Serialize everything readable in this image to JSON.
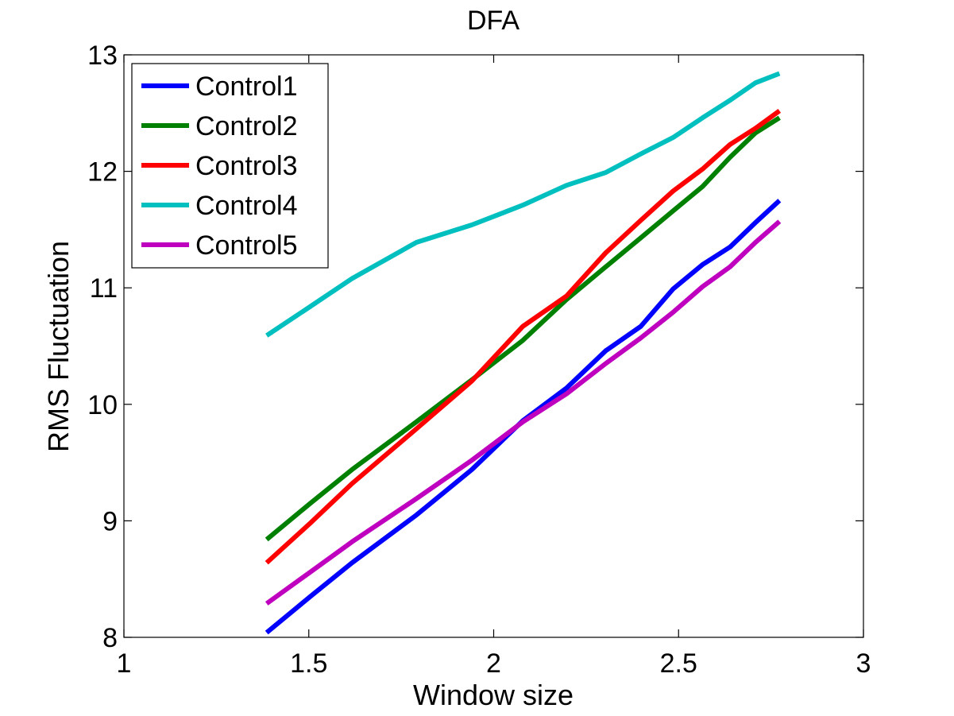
{
  "chart_data": {
    "type": "line",
    "title": "DFA",
    "xlabel": "Window size",
    "ylabel": "RMS Fluctuation",
    "xlim": [
      1,
      3
    ],
    "ylim": [
      8,
      13
    ],
    "xticks": [
      1,
      1.5,
      2,
      2.5,
      3
    ],
    "xtick_labels": [
      "1",
      "1.5",
      "2",
      "2.5",
      "3"
    ],
    "yticks": [
      8,
      9,
      10,
      11,
      12,
      13
    ],
    "ytick_labels": [
      "8",
      "9",
      "10",
      "11",
      "12",
      "13"
    ],
    "grid": false,
    "legend_position": "top-left",
    "series": [
      {
        "name": "Control1",
        "color": "#0000ff",
        "x": [
          1.386,
          1.504,
          1.617,
          1.791,
          1.941,
          2.079,
          2.197,
          2.303,
          2.398,
          2.485,
          2.565,
          2.639,
          2.708,
          2.773
        ],
        "y": [
          8.04,
          8.35,
          8.64,
          9.05,
          9.44,
          9.86,
          10.14,
          10.46,
          10.67,
          10.99,
          11.2,
          11.35,
          11.56,
          11.75
        ]
      },
      {
        "name": "Control2",
        "color": "#008000",
        "x": [
          1.386,
          1.504,
          1.617,
          1.791,
          1.941,
          2.079,
          2.197,
          2.303,
          2.398,
          2.485,
          2.565,
          2.639,
          2.708,
          2.773
        ],
        "y": [
          8.84,
          9.15,
          9.44,
          9.85,
          10.21,
          10.55,
          10.9,
          11.18,
          11.43,
          11.66,
          11.87,
          12.12,
          12.33,
          12.46
        ]
      },
      {
        "name": "Control3",
        "color": "#ff0000",
        "x": [
          1.386,
          1.504,
          1.617,
          1.791,
          1.941,
          2.079,
          2.197,
          2.303,
          2.398,
          2.485,
          2.565,
          2.639,
          2.708,
          2.773
        ],
        "y": [
          8.64,
          8.98,
          9.32,
          9.79,
          10.2,
          10.67,
          10.93,
          11.3,
          11.58,
          11.83,
          12.02,
          12.23,
          12.37,
          12.52
        ]
      },
      {
        "name": "Control4",
        "color": "#00bfbf",
        "x": [
          1.386,
          1.504,
          1.617,
          1.791,
          1.941,
          2.079,
          2.197,
          2.303,
          2.398,
          2.485,
          2.565,
          2.639,
          2.708,
          2.773
        ],
        "y": [
          10.59,
          10.84,
          11.08,
          11.39,
          11.54,
          11.71,
          11.88,
          11.99,
          12.15,
          12.29,
          12.46,
          12.61,
          12.76,
          12.84
        ]
      },
      {
        "name": "Control5",
        "color": "#bf00bf",
        "x": [
          1.386,
          1.504,
          1.617,
          1.791,
          1.941,
          2.079,
          2.197,
          2.303,
          2.398,
          2.485,
          2.565,
          2.639,
          2.708,
          2.773
        ],
        "y": [
          8.29,
          8.56,
          8.82,
          9.19,
          9.52,
          9.85,
          10.09,
          10.35,
          10.57,
          10.79,
          11.01,
          11.18,
          11.39,
          11.57
        ]
      }
    ]
  }
}
